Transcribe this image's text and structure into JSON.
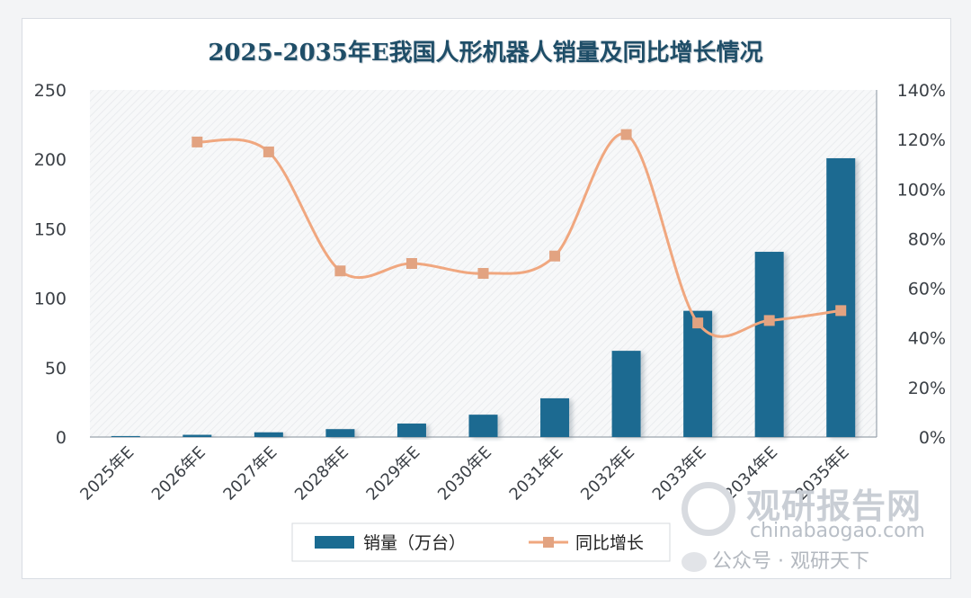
{
  "chart_data": {
    "type": "bar",
    "title": "2025-2035年E我国人形机器人销量及同比增长情况",
    "categories": [
      "2025年E",
      "2026年E",
      "2027年E",
      "2028年E",
      "2029年E",
      "2030年E",
      "2031年E",
      "2032年E",
      "2033年E",
      "2034年E",
      "2035年E"
    ],
    "series": [
      {
        "name": "销量（万台）",
        "type": "bar",
        "axis": "left",
        "values": [
          0.7,
          1.6,
          3.4,
          5.7,
          9.7,
          16.1,
          27.9,
          62.1,
          90.9,
          133.4,
          200.8
        ]
      },
      {
        "name": "同比增长",
        "type": "line",
        "axis": "right",
        "values": [
          null,
          1.19,
          1.15,
          0.67,
          0.7,
          0.66,
          0.73,
          1.22,
          0.46,
          0.47,
          0.51
        ]
      }
    ],
    "y_left": {
      "min": 0,
      "max": 250,
      "step": 50,
      "ticks": [
        "0",
        "50",
        "100",
        "150",
        "200",
        "250"
      ]
    },
    "y_right": {
      "min": 0,
      "max": 1.4,
      "step": 0.2,
      "ticks": [
        "0%",
        "20%",
        "40%",
        "60%",
        "80%",
        "100%",
        "120%",
        "140%"
      ]
    },
    "legend_position": "bottom",
    "colors": {
      "bar": "#1a6b91",
      "line": "#f0a77f",
      "marker": "#e2a381"
    }
  },
  "watermark": {
    "brand": "观研报告网",
    "url": "chinabaogao.com",
    "wechat": "公众号 · 观研天下"
  }
}
